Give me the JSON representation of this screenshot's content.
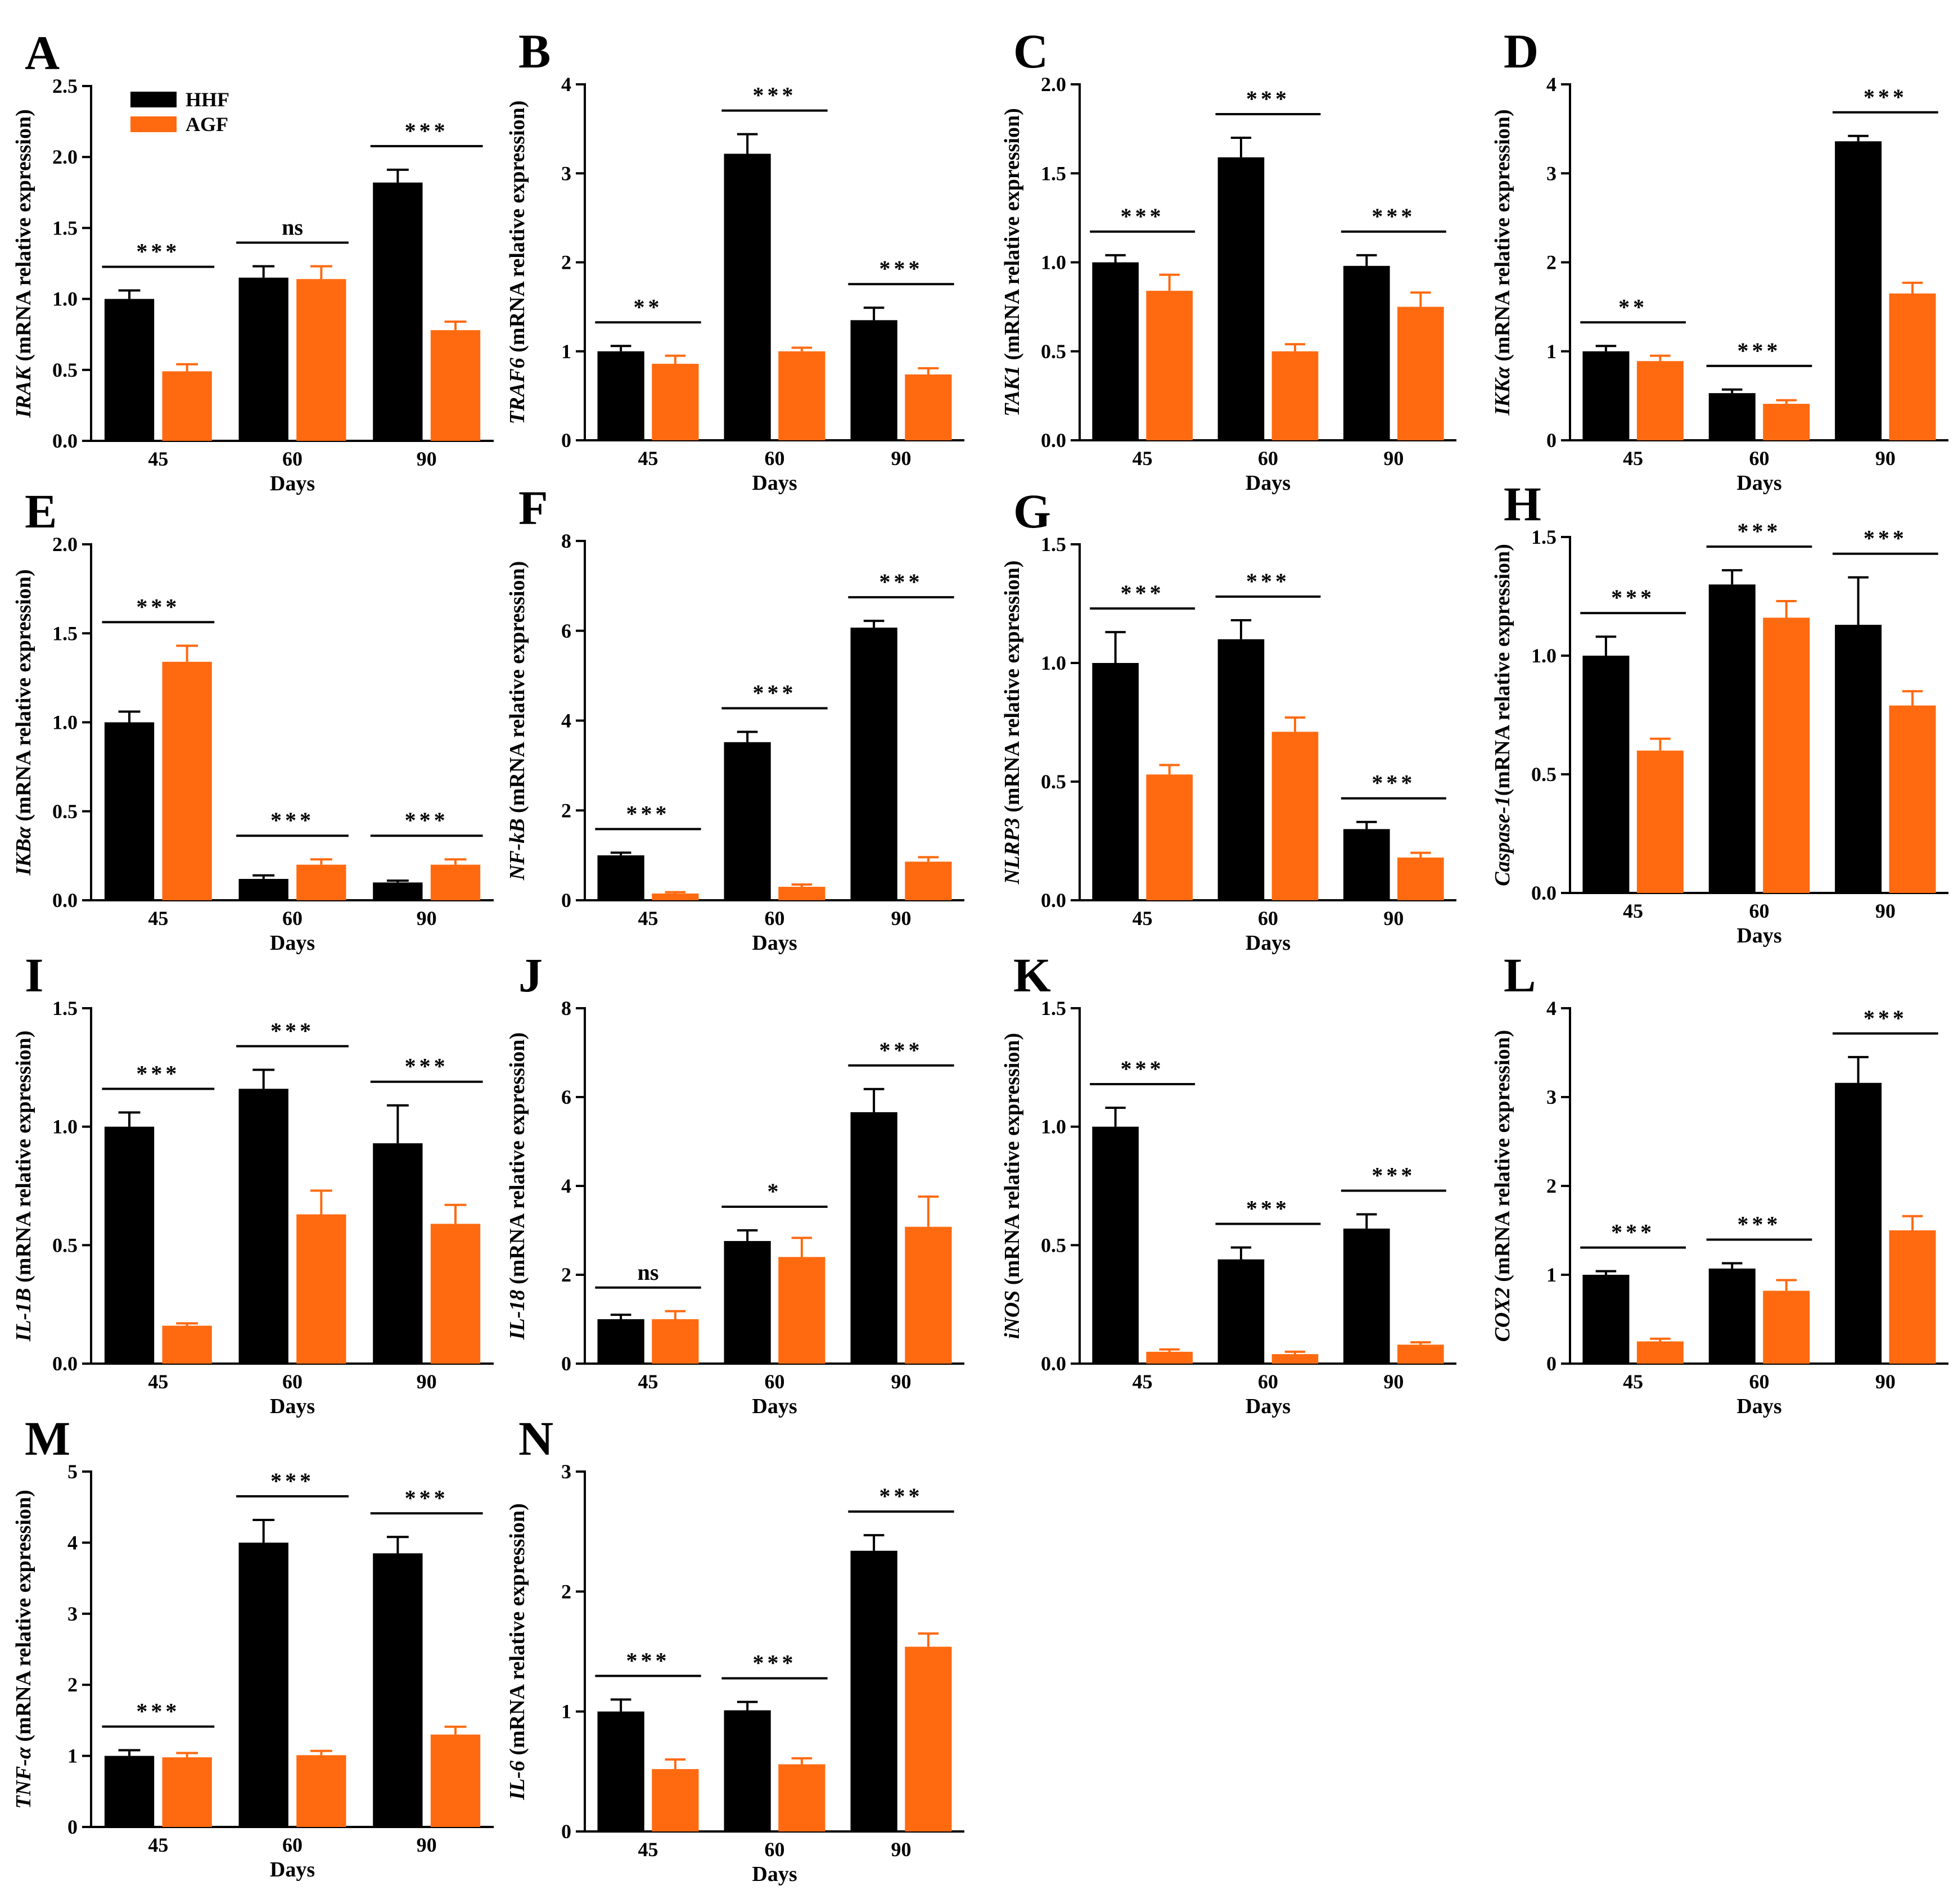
{
  "colors": {
    "HHF": "#000000",
    "AGF": "#ff6a10"
  },
  "chart_data": [
    {
      "panel": "A",
      "type": "bar",
      "gene": "IRAK",
      "ylabel_suffix": " (mRNA relative expression)",
      "xlabel": "Days",
      "categories": [
        "45",
        "60",
        "90"
      ],
      "ylim": [
        0,
        2.5
      ],
      "yticks": [
        "0.0",
        "0.5",
        "1.0",
        "1.5",
        "2.0",
        "2.5"
      ],
      "series": [
        {
          "name": "HHF",
          "values": [
            1.0,
            1.15,
            1.82
          ],
          "errors": [
            0.06,
            0.08,
            0.09
          ]
        },
        {
          "name": "AGF",
          "values": [
            0.49,
            1.14,
            0.78
          ],
          "errors": [
            0.05,
            0.09,
            0.06
          ]
        }
      ],
      "significance": [
        "***",
        "ns",
        "***"
      ],
      "legend": [
        "HHF",
        "AGF"
      ]
    },
    {
      "panel": "B",
      "type": "bar",
      "gene": "TRAF6",
      "ylabel_suffix": " (mRNA relative expression)",
      "xlabel": "Days",
      "categories": [
        "45",
        "60",
        "90"
      ],
      "ylim": [
        0,
        4
      ],
      "yticks": [
        "0",
        "1",
        "2",
        "3",
        "4"
      ],
      "series": [
        {
          "name": "HHF",
          "values": [
            1.0,
            3.22,
            1.35
          ],
          "errors": [
            0.06,
            0.22,
            0.14
          ]
        },
        {
          "name": "AGF",
          "values": [
            0.86,
            1.0,
            0.74
          ],
          "errors": [
            0.09,
            0.04,
            0.07
          ]
        }
      ],
      "significance": [
        "**",
        "***",
        "***"
      ]
    },
    {
      "panel": "C",
      "type": "bar",
      "gene": "TAK1",
      "ylabel_suffix": " (mRNA relative expression)",
      "xlabel": "Days",
      "categories": [
        "45",
        "60",
        "90"
      ],
      "ylim": [
        0,
        2.0
      ],
      "yticks": [
        "0.0",
        "0.5",
        "1.0",
        "1.5",
        "2.0"
      ],
      "series": [
        {
          "name": "HHF",
          "values": [
            1.0,
            1.59,
            0.98
          ],
          "errors": [
            0.04,
            0.11,
            0.06
          ]
        },
        {
          "name": "AGF",
          "values": [
            0.84,
            0.5,
            0.75
          ],
          "errors": [
            0.09,
            0.04,
            0.08
          ]
        }
      ],
      "significance": [
        "***",
        "***",
        "***"
      ]
    },
    {
      "panel": "D",
      "type": "bar",
      "gene": "IKKα",
      "ylabel_suffix": " (mRNA relative expression)",
      "xlabel": "Days",
      "categories": [
        "45",
        "60",
        "90"
      ],
      "ylim": [
        0,
        4
      ],
      "yticks": [
        "0",
        "1",
        "2",
        "3",
        "4"
      ],
      "series": [
        {
          "name": "HHF",
          "values": [
            1.0,
            0.53,
            3.36
          ],
          "errors": [
            0.06,
            0.04,
            0.06
          ]
        },
        {
          "name": "AGF",
          "values": [
            0.89,
            0.41,
            1.65
          ],
          "errors": [
            0.06,
            0.04,
            0.12
          ]
        }
      ],
      "significance": [
        "**",
        "***",
        "***"
      ]
    },
    {
      "panel": "E",
      "type": "bar",
      "gene": "IKBα",
      "ylabel_suffix": " (mRNA relative expression)",
      "xlabel": "Days",
      "categories": [
        "45",
        "60",
        "90"
      ],
      "ylim": [
        0,
        2.0
      ],
      "yticks": [
        "0.0",
        "0.5",
        "1.0",
        "1.5",
        "2.0"
      ],
      "series": [
        {
          "name": "HHF",
          "values": [
            1.0,
            0.12,
            0.1
          ],
          "errors": [
            0.06,
            0.02,
            0.01
          ]
        },
        {
          "name": "AGF",
          "values": [
            1.34,
            0.2,
            0.2
          ],
          "errors": [
            0.09,
            0.03,
            0.03
          ]
        }
      ],
      "significance": [
        "***",
        "***",
        "***"
      ]
    },
    {
      "panel": "F",
      "type": "bar",
      "gene": "NF-kB",
      "ylabel_suffix": " (mRNA relative expression)",
      "xlabel": "Days",
      "categories": [
        "45",
        "60",
        "90"
      ],
      "ylim": [
        0,
        8
      ],
      "yticks": [
        "0",
        "2",
        "4",
        "6",
        "8"
      ],
      "series": [
        {
          "name": "HHF",
          "values": [
            1.0,
            3.52,
            6.07
          ],
          "errors": [
            0.06,
            0.23,
            0.15
          ]
        },
        {
          "name": "AGF",
          "values": [
            0.15,
            0.3,
            0.86
          ],
          "errors": [
            0.03,
            0.05,
            0.1
          ]
        }
      ],
      "significance": [
        "***",
        "***",
        "***"
      ]
    },
    {
      "panel": "G",
      "type": "bar",
      "gene": "NLRP3",
      "ylabel_suffix": " (mRNA relative expression)",
      "xlabel": "Days",
      "categories": [
        "45",
        "60",
        "90"
      ],
      "ylim": [
        0,
        1.5
      ],
      "yticks": [
        "0.0",
        "0.5",
        "1.0",
        "1.5"
      ],
      "series": [
        {
          "name": "HHF",
          "values": [
            1.0,
            1.1,
            0.3
          ],
          "errors": [
            0.13,
            0.08,
            0.03
          ]
        },
        {
          "name": "AGF",
          "values": [
            0.53,
            0.71,
            0.18
          ],
          "errors": [
            0.04,
            0.06,
            0.02
          ]
        }
      ],
      "significance": [
        "***",
        "***",
        "***"
      ]
    },
    {
      "panel": "H",
      "type": "bar",
      "gene": "Caspase-1",
      "ylabel_suffix": "(mRNA relative expression)",
      "xlabel": "Days",
      "categories": [
        "45",
        "60",
        "90"
      ],
      "ylim": [
        0,
        1.5
      ],
      "yticks": [
        "0.0",
        "0.5",
        "1.0",
        "1.5"
      ],
      "series": [
        {
          "name": "HHF",
          "values": [
            1.0,
            1.3,
            1.13
          ],
          "errors": [
            0.08,
            0.06,
            0.2
          ]
        },
        {
          "name": "AGF",
          "values": [
            0.6,
            1.16,
            0.79
          ],
          "errors": [
            0.05,
            0.07,
            0.06
          ]
        }
      ],
      "significance": [
        "***",
        "***",
        "***"
      ]
    },
    {
      "panel": "I",
      "type": "bar",
      "gene": "IL-1B",
      "ylabel_suffix": " (mRNA relative expression)",
      "xlabel": "Days",
      "categories": [
        "45",
        "60",
        "90"
      ],
      "ylim": [
        0,
        1.5
      ],
      "yticks": [
        "0.0",
        "0.5",
        "1.0",
        "1.5"
      ],
      "series": [
        {
          "name": "HHF",
          "values": [
            1.0,
            1.16,
            0.93
          ],
          "errors": [
            0.06,
            0.08,
            0.16
          ]
        },
        {
          "name": "AGF",
          "values": [
            0.16,
            0.63,
            0.59
          ],
          "errors": [
            0.01,
            0.1,
            0.08
          ]
        }
      ],
      "significance": [
        "***",
        "***",
        "***"
      ]
    },
    {
      "panel": "J",
      "type": "bar",
      "gene": "IL-18",
      "ylabel_suffix": " (mRNA relative expression)",
      "xlabel": "Days",
      "categories": [
        "45",
        "60",
        "90"
      ],
      "ylim": [
        0,
        8
      ],
      "yticks": [
        "0",
        "2",
        "4",
        "6",
        "8"
      ],
      "series": [
        {
          "name": "HHF",
          "values": [
            1.0,
            2.76,
            5.66
          ],
          "errors": [
            0.1,
            0.24,
            0.52
          ]
        },
        {
          "name": "AGF",
          "values": [
            1.0,
            2.4,
            3.08
          ],
          "errors": [
            0.18,
            0.43,
            0.68
          ]
        }
      ],
      "significance": [
        "ns",
        "*",
        "***"
      ]
    },
    {
      "panel": "K",
      "type": "bar",
      "gene": "iNOS",
      "ylabel_suffix": " (mRNA relative expression)",
      "xlabel": "Days",
      "categories": [
        "45",
        "60",
        "90"
      ],
      "ylim": [
        0,
        1.5
      ],
      "yticks": [
        "0.0",
        "0.5",
        "1.0",
        "1.5"
      ],
      "series": [
        {
          "name": "HHF",
          "values": [
            1.0,
            0.44,
            0.57
          ],
          "errors": [
            0.08,
            0.05,
            0.06
          ]
        },
        {
          "name": "AGF",
          "values": [
            0.05,
            0.04,
            0.08
          ],
          "errors": [
            0.01,
            0.01,
            0.01
          ]
        }
      ],
      "significance": [
        "***",
        "***",
        "***"
      ]
    },
    {
      "panel": "L",
      "type": "bar",
      "gene": "COX2",
      "ylabel_suffix": " (mRNA relative expression)",
      "xlabel": "Days",
      "categories": [
        "45",
        "60",
        "90"
      ],
      "ylim": [
        0,
        4
      ],
      "yticks": [
        "0",
        "1",
        "2",
        "3",
        "4"
      ],
      "series": [
        {
          "name": "HHF",
          "values": [
            1.0,
            1.07,
            3.16
          ],
          "errors": [
            0.04,
            0.06,
            0.29
          ]
        },
        {
          "name": "AGF",
          "values": [
            0.25,
            0.82,
            1.5
          ],
          "errors": [
            0.03,
            0.12,
            0.16
          ]
        }
      ],
      "significance": [
        "***",
        "***",
        "***"
      ]
    },
    {
      "panel": "M",
      "type": "bar",
      "gene": "TNF-α",
      "ylabel_suffix": " (mRNA relative expression)",
      "xlabel": "Days",
      "categories": [
        "45",
        "60",
        "90"
      ],
      "ylim": [
        0,
        5
      ],
      "yticks": [
        "0",
        "1",
        "2",
        "3",
        "4",
        "5"
      ],
      "series": [
        {
          "name": "HHF",
          "values": [
            1.0,
            4.0,
            3.85
          ],
          "errors": [
            0.08,
            0.32,
            0.23
          ]
        },
        {
          "name": "AGF",
          "values": [
            0.98,
            1.01,
            1.3
          ],
          "errors": [
            0.06,
            0.06,
            0.11
          ]
        }
      ],
      "significance": [
        "***",
        "***",
        "***"
      ]
    },
    {
      "panel": "N",
      "type": "bar",
      "gene": "IL-6",
      "ylabel_suffix": " (mRNA relative expression)",
      "xlabel": "Days",
      "categories": [
        "45",
        "60",
        "90"
      ],
      "ylim": [
        0,
        3
      ],
      "yticks": [
        "0",
        "1",
        "2",
        "3"
      ],
      "series": [
        {
          "name": "HHF",
          "values": [
            1.0,
            1.01,
            2.34
          ],
          "errors": [
            0.1,
            0.07,
            0.13
          ]
        },
        {
          "name": "AGF",
          "values": [
            0.52,
            0.56,
            1.54
          ],
          "errors": [
            0.08,
            0.05,
            0.11
          ]
        }
      ],
      "significance": [
        "***",
        "***",
        "***"
      ]
    }
  ]
}
